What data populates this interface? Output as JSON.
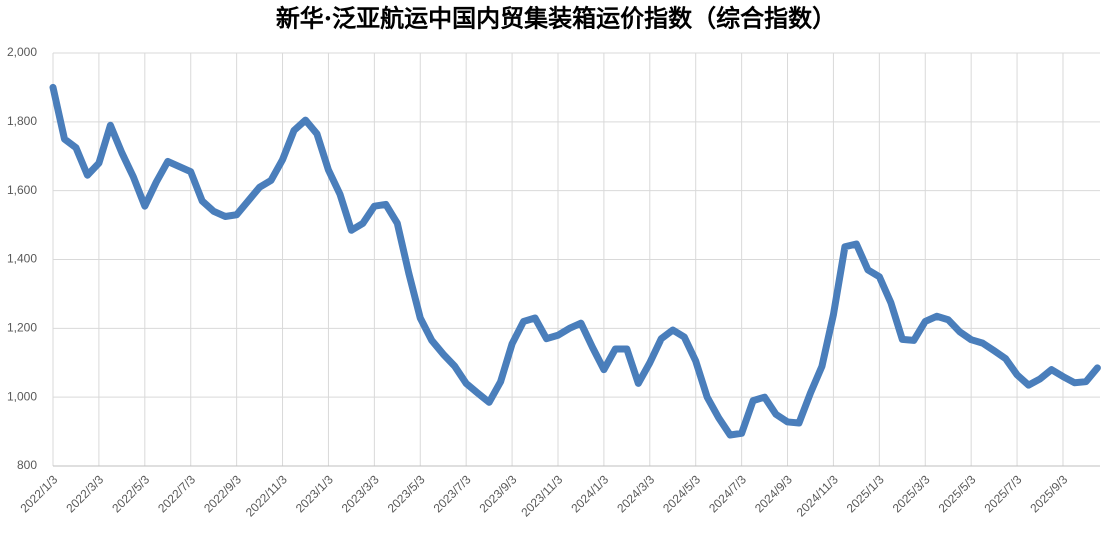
{
  "chart_data": {
    "type": "line",
    "title": "新华·泛亚航运中国内贸集装箱运价指数（综合指数）",
    "categories": [
      "2022/1/3",
      null,
      null,
      null,
      "2022/3/3",
      null,
      null,
      null,
      "2022/5/3",
      null,
      null,
      null,
      "2022/7/3",
      null,
      null,
      null,
      "2022/9/3",
      null,
      null,
      null,
      "2022/11/3",
      null,
      null,
      null,
      "2023/1/3",
      null,
      null,
      null,
      "2023/3/3",
      null,
      null,
      null,
      "2023/5/3",
      null,
      null,
      null,
      "2023/7/3",
      null,
      null,
      null,
      "2023/9/3",
      null,
      null,
      null,
      "2023/11/3",
      null,
      null,
      null,
      "2024/1/3",
      null,
      null,
      null,
      "2024/3/3",
      null,
      null,
      null,
      "2024/5/3",
      null,
      null,
      null,
      "2024/7/3",
      null,
      null,
      null,
      "2024/9/3",
      null,
      null,
      null,
      "2024/11/3",
      null,
      null,
      null,
      "2025/1/3",
      null,
      null,
      null,
      "2025/3/3",
      null,
      null,
      null,
      "2025/5/3",
      null,
      null,
      null,
      "2025/7/3",
      null,
      null,
      null,
      "2025/9/3",
      null,
      null,
      null
    ],
    "values": [
      1900,
      1750,
      1725,
      1645,
      1680,
      1790,
      1710,
      1640,
      1555,
      1625,
      1685,
      1670,
      1655,
      1570,
      1540,
      1525,
      1530,
      1570,
      1610,
      1630,
      1690,
      1775,
      1805,
      1765,
      1660,
      1590,
      1485,
      1505,
      1555,
      1560,
      1505,
      1360,
      1230,
      1165,
      1125,
      1090,
      1040,
      1012,
      985,
      1045,
      1155,
      1220,
      1230,
      1170,
      1180,
      1200,
      1215,
      1145,
      1080,
      1140,
      1140,
      1040,
      1100,
      1170,
      1195,
      1175,
      1105,
      1000,
      940,
      890,
      895,
      990,
      1000,
      950,
      928,
      925,
      1012,
      1090,
      1240,
      1437,
      1445,
      1370,
      1350,
      1275,
      1168,
      1165,
      1220,
      1235,
      1225,
      1190,
      1167,
      1157,
      1135,
      1112,
      1065,
      1035,
      1053,
      1080,
      1060,
      1042,
      1045,
      1085
    ],
    "color": "#4a7ebb",
    "ylim": [
      800,
      2000
    ],
    "yticks": [
      800,
      {
        "value": 1000,
        "label": "1,000"
      },
      {
        "value": 1200,
        "label": "1,200"
      },
      {
        "value": 1400,
        "label": "1,400"
      },
      {
        "value": 1600,
        "label": "1,600"
      },
      {
        "value": 1800,
        "label": "1,800"
      },
      {
        "value": 2000,
        "label": "2,000"
      }
    ],
    "grid": true
  }
}
